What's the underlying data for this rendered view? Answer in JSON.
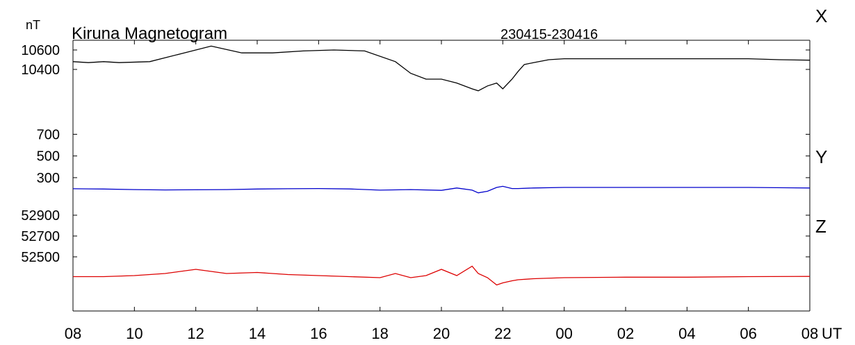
{
  "chart_data": {
    "type": "line",
    "title": "Kiruna Magnetogram",
    "date_range": "230415-230416",
    "unit_label": "nT",
    "x_unit": "UT",
    "x_tick_labels": [
      "08",
      "10",
      "12",
      "14",
      "16",
      "18",
      "20",
      "22",
      "00",
      "02",
      "04",
      "06",
      "08"
    ],
    "x_range_hours": [
      0,
      24
    ],
    "series": [
      {
        "name": "X",
        "color": "#000000",
        "y_ticks": [
          10600,
          10400
        ],
        "ylim": [
          9900,
          10700
        ],
        "x": [
          0,
          0.5,
          1,
          1.5,
          2.5,
          3.5,
          4.5,
          5.5,
          6.5,
          7.5,
          8.5,
          9.5,
          10.5,
          11,
          11.5,
          12,
          12.5,
          13,
          13.2,
          13.5,
          13.8,
          14,
          14.3,
          14.5,
          14.7,
          15,
          15.5,
          16,
          17,
          18,
          19,
          20,
          21,
          22,
          23,
          24
        ],
        "values": [
          10480,
          10470,
          10480,
          10470,
          10480,
          10560,
          10640,
          10570,
          10570,
          10590,
          10600,
          10590,
          10480,
          10360,
          10300,
          10300,
          10260,
          10200,
          10180,
          10230,
          10260,
          10200,
          10300,
          10380,
          10450,
          10470,
          10500,
          10510,
          10510,
          10510,
          10510,
          10510,
          10510,
          10510,
          10500,
          10495
        ]
      },
      {
        "name": "Y",
        "color": "#0000cc",
        "y_ticks": [
          700,
          500,
          300
        ],
        "ylim": [
          50,
          850
        ],
        "x": [
          0,
          1,
          2,
          3,
          4,
          5,
          6,
          7,
          8,
          9,
          10,
          11,
          12,
          12.5,
          13,
          13.2,
          13.5,
          13.8,
          14,
          14.3,
          14.5,
          15,
          16,
          18,
          20,
          22,
          24
        ],
        "values": [
          198,
          195,
          190,
          187,
          188,
          190,
          195,
          198,
          200,
          196,
          185,
          190,
          183,
          205,
          185,
          160,
          175,
          210,
          220,
          200,
          200,
          205,
          210,
          210,
          210,
          210,
          205
        ]
      },
      {
        "name": "Z",
        "color": "#dd0000",
        "y_ticks": [
          52900,
          52700,
          52500
        ],
        "ylim": [
          52000,
          53000
        ],
        "x": [
          0,
          1,
          2,
          3,
          4,
          5,
          6,
          7,
          8,
          9,
          10,
          10.5,
          11,
          11.5,
          12,
          12.5,
          13,
          13.2,
          13.5,
          13.8,
          14,
          14.3,
          14.5,
          15,
          16,
          18,
          20,
          22,
          24
        ],
        "values": [
          52310,
          52310,
          52320,
          52340,
          52380,
          52340,
          52350,
          52330,
          52320,
          52310,
          52300,
          52340,
          52300,
          52320,
          52380,
          52320,
          52410,
          52340,
          52300,
          52230,
          52250,
          52270,
          52280,
          52290,
          52300,
          52305,
          52305,
          52310,
          52312
        ]
      }
    ]
  }
}
